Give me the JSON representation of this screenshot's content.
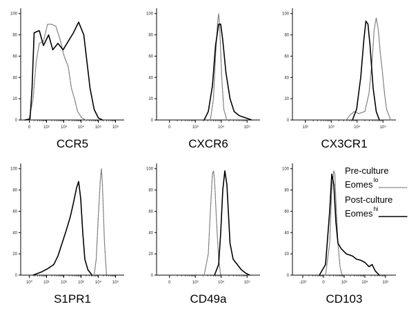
{
  "chart_data": [
    {
      "type": "histogram",
      "title": "CCR5",
      "x_ticks": [
        "0",
        "10²",
        "10³",
        "10⁴",
        "10⁵",
        "10⁶"
      ],
      "y_ticks": [
        "0",
        "20",
        "40",
        "60",
        "80",
        "100"
      ],
      "ylim": [
        0,
        100
      ],
      "series": [
        {
          "style": "solid",
          "x": [
            -0.8,
            -0.55,
            -0.45,
            -0.35,
            -0.1,
            0.1,
            0.35,
            0.55,
            0.8,
            1.05,
            1.3,
            1.55,
            1.8,
            2.05,
            2.2,
            2.35,
            2.55,
            2.75,
            2.95
          ],
          "y": [
            0,
            1,
            30,
            82,
            84,
            70,
            80,
            66,
            72,
            66,
            74,
            82,
            92,
            80,
            55,
            30,
            10,
            2,
            0
          ]
        },
        {
          "style": "dotted",
          "x": [
            -0.6,
            -0.4,
            -0.25,
            -0.1,
            0.1,
            0.3,
            0.5,
            0.7,
            0.9,
            1.1,
            1.3,
            1.45,
            1.6,
            1.75,
            1.95,
            2.15
          ],
          "y": [
            0,
            20,
            55,
            72,
            74,
            90,
            90,
            88,
            76,
            60,
            50,
            30,
            20,
            8,
            2,
            0
          ]
        }
      ]
    },
    {
      "type": "histogram",
      "title": "CXCR6",
      "x_ticks": [
        "0",
        "10³",
        "10⁴",
        "10⁵"
      ],
      "y_ticks": [
        "0",
        "20",
        "40",
        "60",
        "80",
        "100"
      ],
      "ylim": [
        0,
        100
      ],
      "series": [
        {
          "style": "solid",
          "x": [
            1.3,
            1.5,
            1.7,
            1.85,
            2.0,
            2.1,
            2.2,
            2.35,
            2.55,
            2.75,
            3.0,
            3.3,
            3.6
          ],
          "y": [
            0,
            8,
            32,
            70,
            90,
            90,
            75,
            45,
            20,
            8,
            4,
            2,
            0
          ]
        },
        {
          "style": "dotted",
          "x": [
            1.6,
            1.75,
            1.85,
            1.95,
            2.0,
            2.05,
            2.15,
            2.25,
            2.4
          ],
          "y": [
            0,
            20,
            60,
            92,
            100,
            88,
            40,
            10,
            0
          ]
        }
      ]
    },
    {
      "type": "histogram",
      "title": "CX3CR1",
      "x_ticks": [
        "10²",
        "10³",
        "10⁴",
        "10⁵"
      ],
      "y_ticks": [
        "0",
        "20",
        "40",
        "60",
        "80",
        "100"
      ],
      "ylim": [
        0,
        100
      ],
      "series": [
        {
          "style": "solid",
          "x": [
            1.9,
            2.1,
            2.3,
            2.45,
            2.55,
            2.65,
            2.75,
            2.9,
            3.05,
            3.2
          ],
          "y": [
            0,
            10,
            40,
            75,
            93,
            90,
            70,
            30,
            8,
            0
          ]
        },
        {
          "style": "dotted",
          "x": [
            1.6,
            1.8,
            2.0,
            2.2,
            2.5,
            2.7,
            2.85,
            2.95,
            3.05,
            3.15,
            3.25,
            3.35,
            3.45,
            3.55,
            3.75
          ],
          "y": [
            0,
            5,
            8,
            6,
            8,
            25,
            55,
            85,
            96,
            85,
            62,
            45,
            25,
            10,
            0
          ]
        }
      ]
    },
    {
      "type": "histogram",
      "title": "S1PR1",
      "x_ticks": [
        "10⁰",
        "10¹",
        "10²",
        "10³",
        "10⁴",
        "10⁵"
      ],
      "y_ticks": [
        "0",
        "20",
        "40",
        "60",
        "80",
        "100"
      ],
      "ylim": [
        0,
        100
      ],
      "series": [
        {
          "style": "solid",
          "x": [
            -0.4,
            0.0,
            0.3,
            0.6,
            0.8,
            1.0,
            1.2,
            1.4,
            1.55,
            1.7,
            1.8,
            1.9,
            2.0,
            2.1,
            2.25,
            2.45
          ],
          "y": [
            0,
            3,
            6,
            10,
            18,
            30,
            42,
            55,
            68,
            82,
            88,
            72,
            40,
            15,
            5,
            0
          ]
        },
        {
          "style": "dotted",
          "x": [
            2.55,
            2.65,
            2.75,
            2.85,
            2.9,
            2.95,
            3.05,
            3.15
          ],
          "y": [
            0,
            15,
            55,
            90,
            100,
            85,
            30,
            0
          ]
        }
      ]
    },
    {
      "type": "histogram",
      "title": "CD49a",
      "x_ticks": [
        "0",
        "10³",
        "10⁴",
        "10⁵"
      ],
      "y_ticks": [
        "0",
        "20",
        "40",
        "60",
        "80",
        "100"
      ],
      "ylim": [
        0,
        100
      ],
      "series": [
        {
          "style": "solid",
          "x": [
            1.8,
            2.0,
            2.1,
            2.2,
            2.3,
            2.4,
            2.55,
            2.7,
            2.9,
            3.1,
            3.3,
            3.5
          ],
          "y": [
            0,
            10,
            40,
            80,
            98,
            85,
            30,
            15,
            10,
            5,
            2,
            0
          ]
        },
        {
          "style": "dotted",
          "x": [
            1.3,
            1.5,
            1.6,
            1.7,
            1.75,
            1.8,
            1.9,
            2.0,
            2.1
          ],
          "y": [
            0,
            20,
            60,
            95,
            98,
            90,
            50,
            15,
            0
          ]
        }
      ]
    },
    {
      "type": "histogram",
      "title": "CD103",
      "x_ticks": [
        "-10³",
        "0",
        "10³",
        "10⁴",
        "10⁵"
      ],
      "y_ticks": [
        "0",
        "20",
        "40",
        "60",
        "80",
        "100"
      ],
      "ylim": [
        0,
        100
      ],
      "series": [
        {
          "style": "solid",
          "x": [
            0.3,
            0.6,
            0.8,
            0.9,
            1.0,
            1.1,
            1.2,
            1.35,
            1.6,
            1.9,
            2.1,
            2.3,
            2.5,
            2.7,
            2.85,
            3.0,
            3.2
          ],
          "y": [
            0,
            10,
            60,
            95,
            85,
            50,
            30,
            25,
            20,
            18,
            15,
            14,
            12,
            8,
            10,
            4,
            0
          ]
        },
        {
          "style": "dotted",
          "x": [
            0.6,
            0.8,
            0.9,
            1.0,
            1.05,
            1.1,
            1.2,
            1.3,
            1.4
          ],
          "y": [
            0,
            30,
            80,
            98,
            95,
            70,
            30,
            8,
            0
          ]
        }
      ]
    }
  ],
  "legend": {
    "entries": [
      {
        "line1": "Pre-culture",
        "line2": "Eomes",
        "sup": "lo",
        "style": "dotted"
      },
      {
        "line1": "Post-culture",
        "line2": "Eomes",
        "sup": "hi",
        "style": "solid"
      }
    ]
  }
}
